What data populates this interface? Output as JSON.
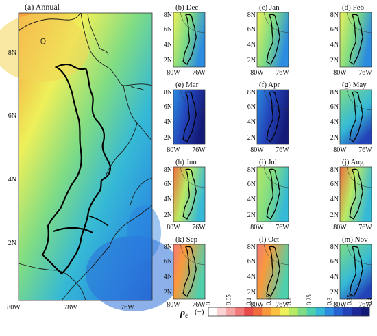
{
  "main_map": {
    "title": "(a) Annual",
    "y_ticks": [
      "8N",
      "6N",
      "4N",
      "2N"
    ],
    "x_ticks": [
      "80W",
      "78W",
      "76W"
    ]
  },
  "panels": [
    {
      "id": "dec",
      "title": "(b) Dec",
      "mean_level": 0.25,
      "pattern": "west-east"
    },
    {
      "id": "jan",
      "title": "(c) Jan",
      "mean_level": 0.25,
      "pattern": "west-east"
    },
    {
      "id": "feb",
      "title": "(d) Feb",
      "mean_level": 0.27,
      "pattern": "west-east"
    },
    {
      "id": "mar",
      "title": "(e) Mar",
      "mean_level": 0.33,
      "pattern": "dark"
    },
    {
      "id": "apr",
      "title": "(f) Apr",
      "mean_level": 0.37,
      "pattern": "dark"
    },
    {
      "id": "may",
      "title": "(g) May",
      "mean_level": 0.26,
      "pattern": "south-dark"
    },
    {
      "id": "jun",
      "title": "(h) Jun",
      "mean_level": 0.2,
      "pattern": "warm-west"
    },
    {
      "id": "jul",
      "title": "(i) Jul",
      "mean_level": 0.24,
      "pattern": "mixed"
    },
    {
      "id": "aug",
      "title": "(j) Aug",
      "mean_level": 0.24,
      "pattern": "warm-west"
    },
    {
      "id": "sep",
      "title": "(k) Sep",
      "mean_level": 0.17,
      "pattern": "hot-west"
    },
    {
      "id": "oct",
      "title": "(l) Oct",
      "mean_level": 0.19,
      "pattern": "hot-west"
    },
    {
      "id": "nov",
      "title": "(m) Nov",
      "mean_level": 0.27,
      "pattern": "south-dark"
    }
  ],
  "small_map": {
    "y_ticks": [
      "8N",
      "6N",
      "4N",
      "2N"
    ],
    "x_ticks": [
      "80W",
      "76W"
    ]
  },
  "colorbar": {
    "label_symbol": "ρ",
    "label_sub": "e",
    "label_unit": "(−)",
    "tick_labels": [
      "0",
      "0.05",
      "0.1",
      "0.15",
      "0.2",
      "0.25",
      "0.3",
      "0.35",
      "0.4"
    ],
    "range": [
      0,
      0.4
    ],
    "colors": [
      "#ffffff",
      "#fbd3d3",
      "#f7a6a6",
      "#f07979",
      "#e84a4a",
      "#f06b3b",
      "#f89a3c",
      "#fbc23f",
      "#eef05a",
      "#b9ea64",
      "#7fdc84",
      "#4fd0ad",
      "#35b9d6",
      "#2b8ce0",
      "#2563d2",
      "#2343b8",
      "#1f2a9a",
      "#141a78"
    ]
  }
}
